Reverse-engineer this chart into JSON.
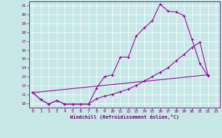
{
  "xlabel": "Windchill (Refroidissement éolien,°C)",
  "xlim": [
    -0.5,
    23.5
  ],
  "ylim": [
    9.5,
    21.5
  ],
  "xticks": [
    0,
    1,
    2,
    3,
    4,
    5,
    6,
    7,
    8,
    9,
    10,
    11,
    12,
    13,
    14,
    15,
    16,
    17,
    18,
    19,
    20,
    21,
    22,
    23
  ],
  "yticks": [
    10,
    11,
    12,
    13,
    14,
    15,
    16,
    17,
    18,
    19,
    20,
    21
  ],
  "bg_color": "#c8e8e8",
  "line_color": "#990099",
  "line1_x": [
    0,
    1,
    2,
    3,
    4,
    5,
    6,
    7,
    8,
    9,
    10,
    11,
    12,
    13,
    14,
    15,
    16,
    17,
    18,
    19,
    20,
    21,
    22
  ],
  "line1_y": [
    11.2,
    10.4,
    9.9,
    10.3,
    9.9,
    9.9,
    9.9,
    9.9,
    11.7,
    13.0,
    13.2,
    15.2,
    15.2,
    17.6,
    18.5,
    19.3,
    21.2,
    20.4,
    20.3,
    19.9,
    17.2,
    14.5,
    13.1
  ],
  "line2_x": [
    0,
    1,
    2,
    3,
    4,
    5,
    6,
    7,
    8,
    9,
    10,
    11,
    12,
    13,
    14,
    15,
    16,
    17,
    18,
    19,
    20,
    21,
    22
  ],
  "line2_y": [
    11.2,
    10.4,
    9.9,
    10.3,
    9.9,
    9.9,
    9.9,
    9.9,
    10.5,
    10.8,
    11.0,
    11.3,
    11.6,
    12.0,
    12.5,
    13.0,
    13.5,
    14.0,
    14.8,
    15.5,
    16.3,
    16.9,
    13.2
  ],
  "line3_x": [
    0,
    22
  ],
  "line3_y": [
    11.2,
    13.2
  ],
  "marker_size": 3,
  "lw": 0.8
}
